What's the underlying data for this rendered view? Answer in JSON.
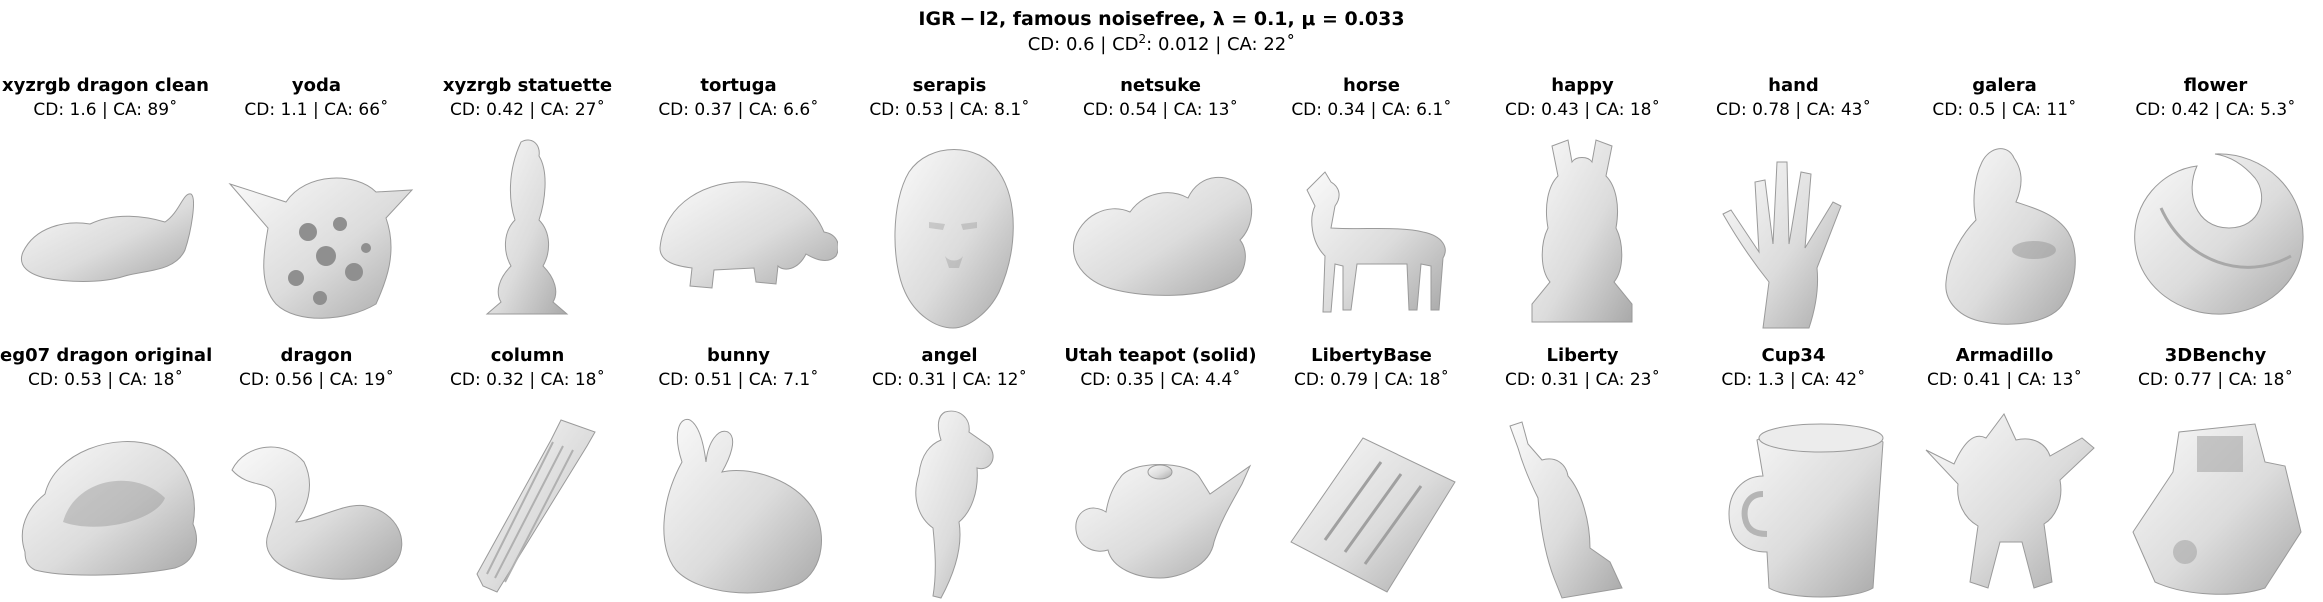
{
  "figure": {
    "title": "IGR − l2,  famous noisefree,  λ = 0.1,  μ = 0.033",
    "subtitle_prefix": "CD: 0.6 | CD",
    "subtitle_sup": "2",
    "subtitle_suffix": ": 0.012 | CA: 22˚"
  },
  "panels": [
    {
      "name": "xyzrgb dragon clean",
      "metrics": "CD: 1.6 | CA: 89˚",
      "shape": "blob"
    },
    {
      "name": "yoda",
      "metrics": "CD: 1.1 | CA: 66˚",
      "shape": "porous-head"
    },
    {
      "name": "xyzrgb statuette",
      "metrics": "CD: 0.42 | CA: 27˚",
      "shape": "statuette"
    },
    {
      "name": "tortuga",
      "metrics": "CD: 0.37 | CA: 6.6˚",
      "shape": "turtle"
    },
    {
      "name": "serapis",
      "metrics": "CD: 0.53 | CA: 8.1˚",
      "shape": "bust"
    },
    {
      "name": "netsuke",
      "metrics": "CD: 0.54 | CA: 13˚",
      "shape": "creature"
    },
    {
      "name": "horse",
      "metrics": "CD: 0.34 | CA: 6.1˚",
      "shape": "horse"
    },
    {
      "name": "happy",
      "metrics": "CD: 0.43 | CA: 18˚",
      "shape": "buddha"
    },
    {
      "name": "hand",
      "metrics": "CD: 0.78 | CA: 43˚",
      "shape": "hand"
    },
    {
      "name": "galera",
      "metrics": "CD: 0.5 | CA: 11˚",
      "shape": "galera"
    },
    {
      "name": "flower",
      "metrics": "CD: 0.42 | CA: 5.3˚",
      "shape": "spiral"
    },
    {
      "name": "eg07 dragon original",
      "metrics": "CD: 0.53 | CA: 18˚",
      "shape": "shell"
    },
    {
      "name": "dragon",
      "metrics": "CD: 0.56 | CA: 19˚",
      "shape": "dragon"
    },
    {
      "name": "column",
      "metrics": "CD: 0.32 | CA: 18˚",
      "shape": "column"
    },
    {
      "name": "bunny",
      "metrics": "CD: 0.51 | CA: 7.1˚",
      "shape": "bunny"
    },
    {
      "name": "angel",
      "metrics": "CD: 0.31 | CA: 12˚",
      "shape": "angel"
    },
    {
      "name": "Utah teapot (solid)",
      "metrics": "CD: 0.35 | CA: 4.4˚",
      "shape": "teapot"
    },
    {
      "name": "LibertyBase",
      "metrics": "CD: 0.79 | CA: 18˚",
      "shape": "base"
    },
    {
      "name": "Liberty",
      "metrics": "CD: 0.31 | CA: 23˚",
      "shape": "liberty"
    },
    {
      "name": "Cup34",
      "metrics": "CD: 1.3 | CA: 42˚",
      "shape": "cup"
    },
    {
      "name": "Armadillo",
      "metrics": "CD: 0.41 | CA: 13˚",
      "shape": "armadillo"
    },
    {
      "name": "3DBenchy",
      "metrics": "CD: 0.77 | CA: 18˚",
      "shape": "boat"
    }
  ]
}
